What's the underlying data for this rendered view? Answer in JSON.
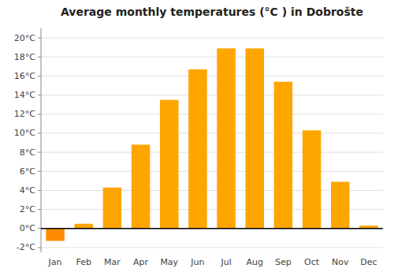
{
  "chart_data": {
    "type": "bar",
    "title": "Average monthly temperatures (°C ) in Dobrošte",
    "categories": [
      "Jan",
      "Feb",
      "Mar",
      "Apr",
      "May",
      "Jun",
      "Jul",
      "Aug",
      "Sep",
      "Oct",
      "Nov",
      "Dec"
    ],
    "values": [
      -1.3,
      0.5,
      4.3,
      8.8,
      13.5,
      16.7,
      18.9,
      18.9,
      15.4,
      10.3,
      4.9,
      0.3
    ],
    "colors": [
      "#FF8C00",
      "#FFA500",
      "#FFA500",
      "#FFA500",
      "#FFA500",
      "#FFA500",
      "#FFA500",
      "#FFA500",
      "#FFA500",
      "#FFA500",
      "#FFA500",
      "#FFA500"
    ],
    "ylim": [
      -2.5,
      21
    ],
    "yticks": [
      {
        "value": -2,
        "label": "-2°C"
      },
      {
        "value": 0,
        "label": "0°C"
      },
      {
        "value": 2,
        "label": "2°C"
      },
      {
        "value": 4,
        "label": "4°C"
      },
      {
        "value": 6,
        "label": "6°C"
      },
      {
        "value": 8,
        "label": "8°C"
      },
      {
        "value": 10,
        "label": "10°C"
      },
      {
        "value": 12,
        "label": "12°C"
      },
      {
        "value": 14,
        "label": "14°C"
      },
      {
        "value": 16,
        "label": "16°C"
      },
      {
        "value": 18,
        "label": "18°C"
      },
      {
        "value": 20,
        "label": "20°C"
      }
    ],
    "grid": true
  }
}
